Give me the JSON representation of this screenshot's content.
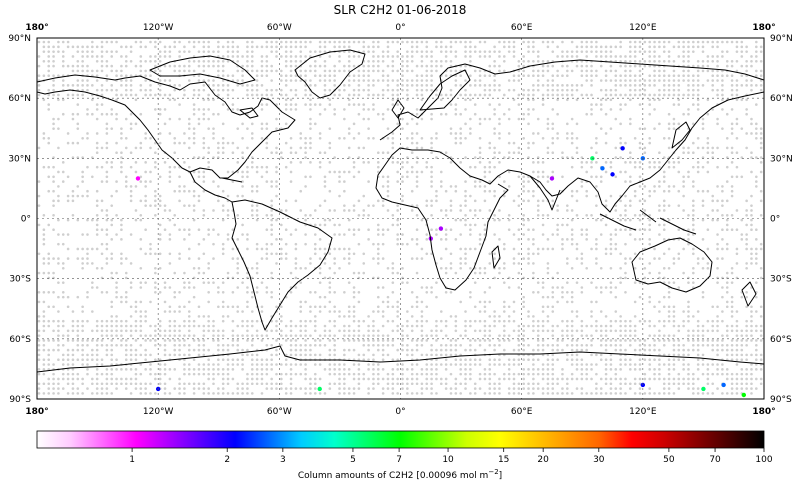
{
  "title": "SLR C2H2 01-06-2018",
  "map": {
    "lon_ticks": [
      "180°",
      "120°W",
      "60°W",
      "0°",
      "60°E",
      "120°E",
      "180°"
    ],
    "lat_ticks_left": [
      "90°N",
      "60°N",
      "30°N",
      "0°",
      "30°S",
      "60°S",
      "90°S"
    ],
    "lat_ticks_right": [
      "90°N",
      "60°N",
      "30°N",
      "0°",
      "30°S",
      "60°S",
      "90°S"
    ],
    "grid": true,
    "projection": "plate-carree",
    "lon_range": [
      -180,
      180
    ],
    "lat_range": [
      -90,
      90
    ]
  },
  "colorbar": {
    "label": "Column amounts of C2H2 [0.00096 mol m",
    "label_exp": "−2",
    "label_close": "]",
    "ticks": [
      "1",
      "2",
      "3",
      "5",
      "7",
      "10",
      "15",
      "20",
      "30",
      "50",
      "70",
      "100"
    ],
    "colors": [
      "#ffffff",
      "#ffccff",
      "#ff66ff",
      "#ff00ff",
      "#aa00ff",
      "#5500ff",
      "#0000ff",
      "#0066ff",
      "#00ccff",
      "#00ffcc",
      "#00ff66",
      "#00ff00",
      "#66ff00",
      "#ccff00",
      "#ffff00",
      "#ffcc00",
      "#ff9900",
      "#ff6600",
      "#ff0000",
      "#cc0000",
      "#880000",
      "#440000",
      "#000000"
    ]
  },
  "chart_data": {
    "type": "heatmap",
    "title": "SLR C2H2 01-06-2018",
    "xlabel": "",
    "ylabel": "",
    "xlim": [
      -180,
      180
    ],
    "ylim": [
      -90,
      90
    ],
    "colorbar_range": [
      0.5,
      100
    ],
    "colorbar_scale": "log",
    "notable_points": [
      {
        "lon": 95,
        "lat": 30,
        "value": 5
      },
      {
        "lon": 100,
        "lat": 25,
        "value": 3
      },
      {
        "lon": 110,
        "lat": 35,
        "value": 2
      },
      {
        "lon": 120,
        "lat": 30,
        "value": 3
      },
      {
        "lon": 105,
        "lat": 22,
        "value": 2
      },
      {
        "lon": 20,
        "lat": -5,
        "value": 1.3
      },
      {
        "lon": 15,
        "lat": -10,
        "value": 1.2
      },
      {
        "lon": -40,
        "lat": -85,
        "value": 5
      },
      {
        "lon": 150,
        "lat": -85,
        "value": 5
      },
      {
        "lon": 160,
        "lat": -83,
        "value": 3
      },
      {
        "lon": 170,
        "lat": -88,
        "value": 7
      },
      {
        "lon": 120,
        "lat": -83,
        "value": 2
      },
      {
        "lon": -120,
        "lat": -85,
        "value": 2
      },
      {
        "lon": 75,
        "lat": 20,
        "value": 1.2
      },
      {
        "lon": -130,
        "lat": 20,
        "value": 1.1
      }
    ]
  }
}
